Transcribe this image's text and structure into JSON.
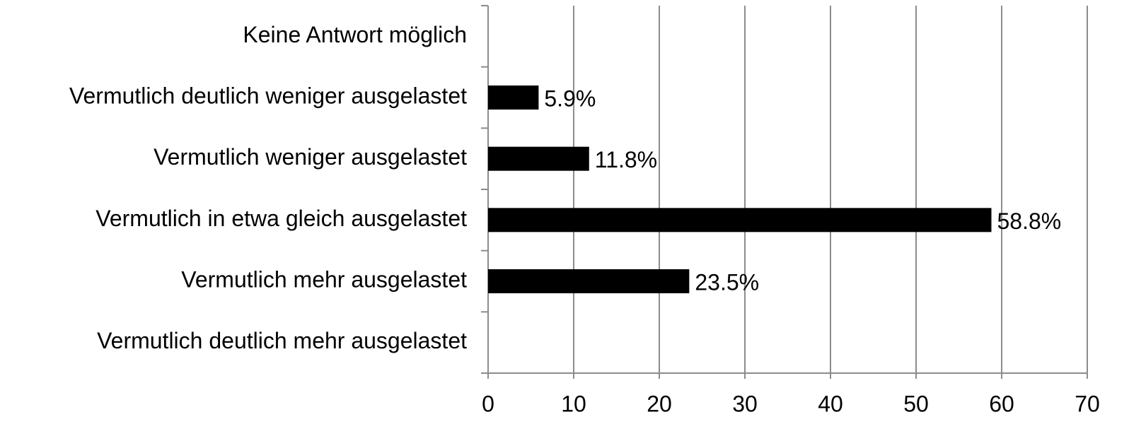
{
  "chart_data": {
    "type": "hbar",
    "categories": [
      "Keine Antwort möglich",
      "Vermutlich deutlich weniger ausgelastet",
      "Vermutlich weniger ausgelastet",
      "Vermutlich in etwa gleich ausgelastet",
      "Vermutlich mehr ausgelastet",
      "Vermutlich deutlich mehr ausgelastet"
    ],
    "values": [
      null,
      5.9,
      11.8,
      58.8,
      23.5,
      null
    ],
    "value_labels": [
      null,
      "5.9%",
      "11.8%",
      "58.8%",
      "23.5%",
      null
    ],
    "color": "#000000",
    "xlim": [
      0,
      70
    ],
    "xticks": [
      0,
      10,
      20,
      30,
      40,
      50,
      60,
      70
    ],
    "grid": true
  }
}
